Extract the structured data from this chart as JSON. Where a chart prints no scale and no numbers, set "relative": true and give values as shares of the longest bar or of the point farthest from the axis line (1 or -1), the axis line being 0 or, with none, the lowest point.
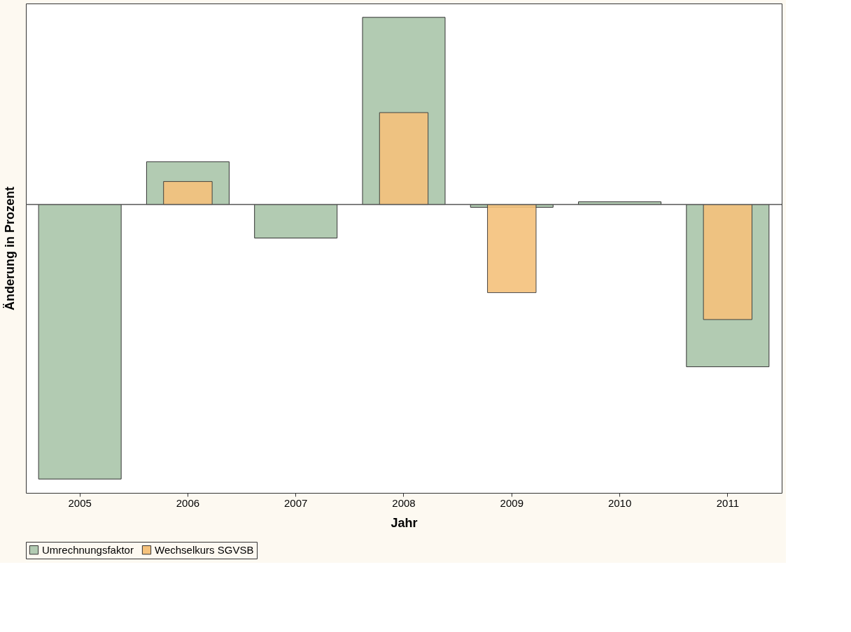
{
  "chart_data": {
    "type": "bar",
    "relative": true,
    "xlabel": "Jahr",
    "ylabel": "Änderung in Prozent",
    "legend": "bottom",
    "categories": [
      "2005",
      "2006",
      "2007",
      "2008",
      "2009",
      "2010",
      "2011"
    ],
    "series": [
      {
        "name": "Umrechnungsfaktor",
        "color": "#b2cbb2",
        "values": [
          -1,
          0.156,
          -0.122,
          0.682,
          -0.01,
          0.01,
          -0.591
        ]
      },
      {
        "name": "Wechselkurs SGVSB",
        "color": "#f5c27c",
        "values": [
          null,
          0.084,
          null,
          0.335,
          -0.321,
          null,
          -0.419
        ]
      }
    ]
  }
}
